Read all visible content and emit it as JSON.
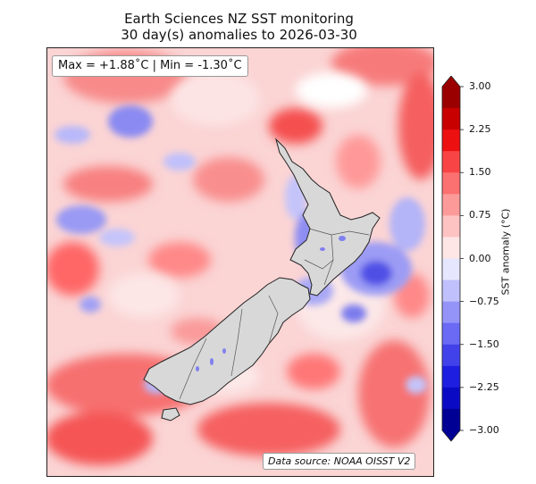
{
  "title": {
    "line1": "Earth Sciences NZ SST monitoring",
    "line2": "30 day(s) anomalies to 2026-03-30"
  },
  "stats": {
    "text": "Max = +1.88˚C | Min = -1.30˚C",
    "max": 1.88,
    "min": -1.3
  },
  "source": "Data source: NOAA OISST V2",
  "colorbar": {
    "label": "SST anomaly (°C)",
    "range": [
      -3.0,
      3.0
    ],
    "ticks": [
      "3.00",
      "2.25",
      "1.50",
      "0.75",
      "0.00",
      "−0.75",
      "−1.50",
      "−2.25",
      "−3.00"
    ],
    "tick_values": [
      3.0,
      2.25,
      1.5,
      0.75,
      0.0,
      -0.75,
      -1.5,
      -2.25,
      -3.0
    ],
    "colors_top_to_bottom": [
      "#9a0000",
      "#c80000",
      "#ec1010",
      "#f84444",
      "#fb7070",
      "#fc9a9a",
      "#fdc2c2",
      "#fee6e6",
      "#e6e6fe",
      "#c0c0fc",
      "#9494f8",
      "#6a6af4",
      "#4242ea",
      "#1e1ee0",
      "#0a0ac4",
      "#000094"
    ]
  },
  "map": {
    "land_color": "#d8d8d8",
    "coast_color": "#222222",
    "region": "New Zealand"
  }
}
